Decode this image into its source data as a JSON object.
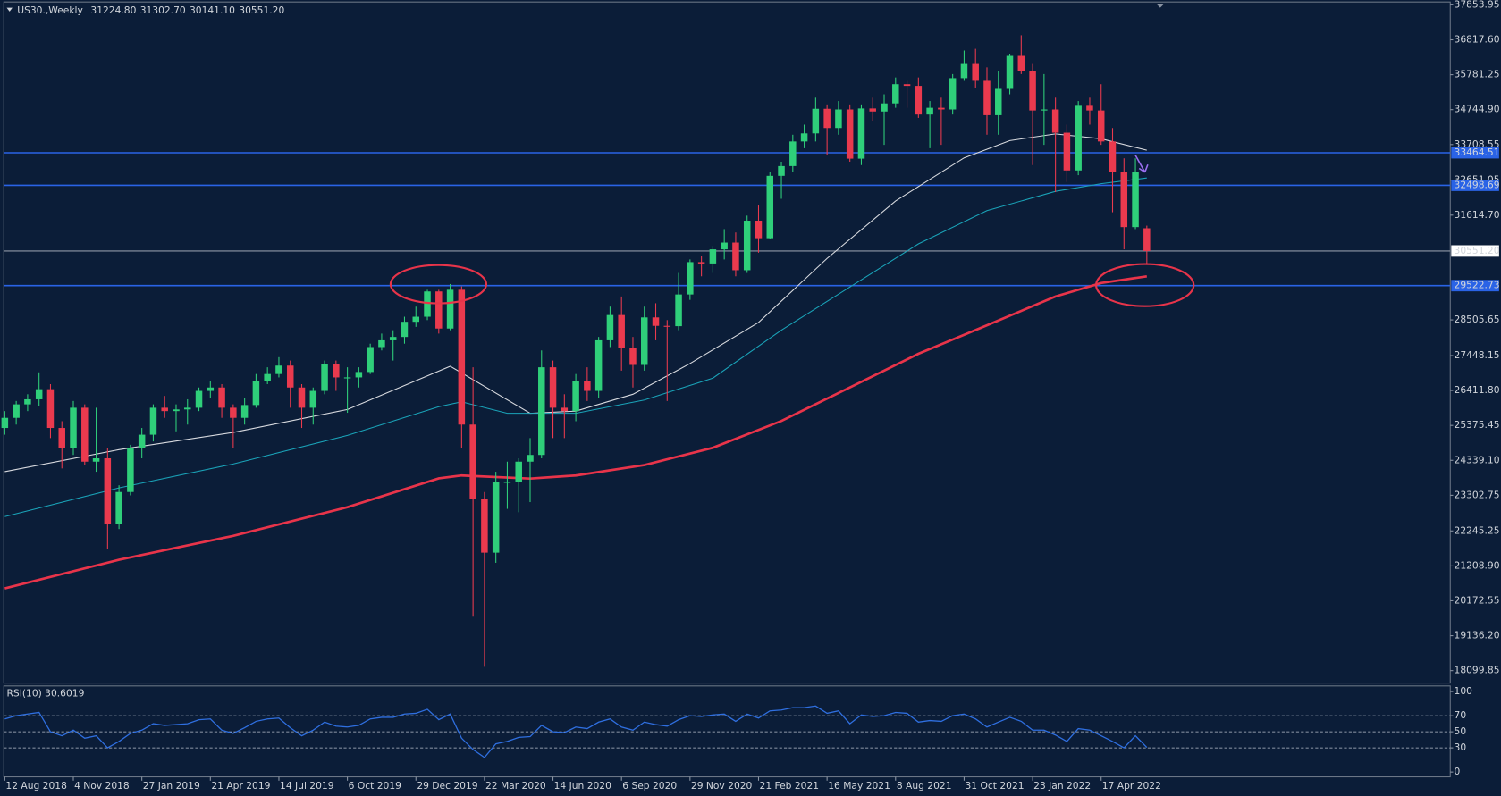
{
  "chart_data": [
    {
      "type": "candlestick",
      "title": "US30.,Weekly",
      "quote": [
        "31224.80",
        "31302.70",
        "30141.10",
        "30551.20"
      ],
      "xlim": [
        -0.42,
        126.57
      ],
      "ylim": [
        17731,
        37939
      ],
      "xticks": [
        {
          "value": 0,
          "label": "12 Aug 2018"
        },
        {
          "value": 6,
          "label": "4 Nov 2018"
        },
        {
          "value": 12,
          "label": "27 Jan 2019"
        },
        {
          "value": 18,
          "label": "21 Apr 2019"
        },
        {
          "value": 24,
          "label": "14 Jul 2019"
        },
        {
          "value": 30,
          "label": "6 Oct 2019"
        },
        {
          "value": 36,
          "label": "29 Dec 2019"
        },
        {
          "value": 42,
          "label": "22 Mar 2020"
        },
        {
          "value": 48,
          "label": "14 Jun 2020"
        },
        {
          "value": 54,
          "label": "6 Sep 2020"
        },
        {
          "value": 60,
          "label": "29 Nov 2020"
        },
        {
          "value": 66,
          "label": "21 Feb 2021"
        },
        {
          "value": 72,
          "label": "16 May 2021"
        },
        {
          "value": 78,
          "label": "8 Aug 2021"
        },
        {
          "value": 84,
          "label": "31 Oct 2021"
        },
        {
          "value": 90,
          "label": "23 Jan 2022"
        },
        {
          "value": 96,
          "label": "17 Apr 2022"
        }
      ],
      "yticks": [
        37853.95,
        {
          "value": 36817.6,
          "label": "36817.60"
        },
        35781.25,
        {
          "value": 34744.9,
          "label": "34744.90"
        },
        33708.55,
        32651.05,
        {
          "value": 31614.7,
          "label": "31614.70"
        },
        28505.65,
        27448.15,
        {
          "value": 26411.8,
          "label": "26411.80"
        },
        25375.45,
        {
          "value": 24339.1,
          "label": "24339.10"
        },
        23302.75,
        22245.25,
        {
          "value": 21208.9,
          "label": "21208.90"
        },
        20172.55,
        {
          "value": 19136.2,
          "label": "19136.20"
        },
        18099.85
      ],
      "up_color": "#2fcf7a",
      "down_color": "#ea3a4e",
      "open": [
        25300,
        25600,
        26000,
        26150,
        26450,
        25300,
        24700,
        25900,
        24300,
        24400,
        22450,
        23400,
        24700,
        25100,
        25900,
        25800,
        25850,
        25900,
        26400,
        26500,
        25900,
        25600,
        25980,
        26700,
        26900,
        27150,
        26500,
        25900,
        26400,
        27200,
        26800,
        26800,
        26960,
        27700,
        27900,
        28000,
        28450,
        28600,
        29350,
        28250,
        29400,
        25400,
        23200,
        21600,
        23700,
        23700,
        24300,
        24500,
        27100,
        25900,
        25800,
        26700,
        26400,
        27900,
        28650,
        27660,
        27170,
        28580,
        28330,
        28320,
        29260,
        30220,
        30180,
        30600,
        30800,
        29980,
        31450,
        30930,
        32780,
        33070,
        33800,
        34040,
        34770,
        34200,
        34750,
        33290,
        34780,
        34690,
        34930,
        35500,
        35450,
        34600,
        34800,
        34750,
        35680,
        36100,
        35600,
        34580,
        35360,
        36340,
        35900,
        34720,
        34750,
        34060,
        32940,
        34860,
        34720,
        33800,
        32900,
        31260,
        31224.8
      ],
      "high": [
        25800,
        26100,
        26300,
        26950,
        26600,
        25500,
        26100,
        26000,
        25900,
        24700,
        23600,
        24800,
        25300,
        26000,
        26250,
        26000,
        26150,
        26500,
        26700,
        26600,
        26000,
        26200,
        26900,
        27100,
        27400,
        27300,
        26600,
        26500,
        27300,
        27300,
        27100,
        27100,
        27800,
        28100,
        28200,
        28600,
        28900,
        29400,
        29400,
        29570,
        29500,
        27100,
        23400,
        24000,
        24300,
        24400,
        25000,
        27600,
        27300,
        26300,
        26900,
        27100,
        28000,
        28900,
        29200,
        28000,
        28900,
        29000,
        28500,
        29900,
        30300,
        30400,
        30700,
        31200,
        31100,
        31600,
        31900,
        32900,
        33200,
        34000,
        34300,
        35100,
        34900,
        35000,
        34900,
        34900,
        35100,
        35200,
        35700,
        35600,
        35700,
        35000,
        35100,
        35800,
        36500,
        36550,
        36000,
        35900,
        36400,
        36952,
        36100,
        35800,
        35100,
        34300,
        35000,
        35100,
        35500,
        34200,
        33300,
        33300,
        31302.7
      ],
      "low": [
        25100,
        25400,
        25800,
        25950,
        25000,
        24100,
        24500,
        24200,
        24000,
        21700,
        22300,
        23300,
        24400,
        24900,
        25600,
        25200,
        25400,
        25800,
        26200,
        25600,
        24700,
        25400,
        25900,
        26600,
        26800,
        25900,
        25300,
        25400,
        26300,
        26400,
        25750,
        26500,
        26900,
        27600,
        27300,
        27800,
        28300,
        28500,
        28100,
        28200,
        24700,
        19700,
        18213,
        21300,
        22900,
        22800,
        23100,
        24400,
        25000,
        25000,
        25500,
        26100,
        26200,
        27700,
        27000,
        26500,
        27000,
        27900,
        26100,
        28200,
        29100,
        29800,
        29900,
        30300,
        29800,
        29900,
        30500,
        30900,
        32100,
        32900,
        33600,
        33800,
        33400,
        34000,
        33200,
        33100,
        34400,
        33700,
        34800,
        34800,
        34500,
        33600,
        33700,
        34600,
        35600,
        35400,
        34000,
        34000,
        35200,
        35800,
        33100,
        33700,
        32300,
        32600,
        32800,
        34300,
        33700,
        31700,
        30600,
        31200,
        30141.1
      ],
      "close": [
        25600,
        26000,
        26150,
        26450,
        25300,
        24700,
        25900,
        24300,
        24400,
        22450,
        23400,
        24700,
        25100,
        25900,
        25800,
        25850,
        25900,
        26400,
        26500,
        25900,
        25600,
        25980,
        26700,
        26900,
        27150,
        26500,
        25900,
        26400,
        27200,
        26800,
        26800,
        26960,
        27700,
        27900,
        28000,
        28450,
        28600,
        29350,
        28250,
        29400,
        25400,
        23200,
        21600,
        23700,
        23700,
        24300,
        24500,
        27100,
        25900,
        25800,
        26700,
        26400,
        27900,
        28650,
        27660,
        27170,
        28580,
        28330,
        28320,
        29260,
        30220,
        30180,
        30600,
        30800,
        29980,
        31450,
        30930,
        32780,
        33070,
        33800,
        34040,
        34770,
        34200,
        34750,
        33290,
        34780,
        34690,
        34930,
        35500,
        35450,
        34600,
        34800,
        34750,
        35680,
        36100,
        35600,
        34580,
        35360,
        36340,
        35900,
        34720,
        34750,
        34060,
        32940,
        34860,
        34720,
        33800,
        32900,
        31260,
        32900,
        30551.2
      ],
      "moving_averages": [
        {
          "color": "#d8dadf",
          "x": [
            0,
            10,
            20,
            30,
            39,
            46,
            50,
            55,
            60,
            66,
            72,
            78,
            84,
            88,
            92,
            96,
            100
          ],
          "values": [
            24004,
            24657,
            25168,
            25849,
            27130,
            25735,
            25800,
            26300,
            27210,
            28431,
            30330,
            32036,
            33313,
            33826,
            34025,
            33880,
            33540
          ]
        },
        {
          "color": "#1aa3b8",
          "x": [
            0,
            10,
            20,
            30,
            38,
            40,
            44,
            50,
            56,
            62,
            68,
            74,
            80,
            86,
            92,
            96,
            100
          ],
          "values": [
            22670,
            23520,
            24230,
            25080,
            25930,
            26076,
            25735,
            25735,
            26130,
            26780,
            28200,
            29480,
            30760,
            31750,
            32320,
            32547,
            32716
          ]
        },
        {
          "color": "#e8344a",
          "x": [
            0,
            10,
            20,
            30,
            38,
            40,
            46,
            50,
            56,
            62,
            68,
            74,
            80,
            86,
            92,
            96,
            100
          ],
          "values": [
            20542,
            21390,
            22100,
            22950,
            23805,
            23890,
            23800,
            23890,
            24200,
            24713,
            25508,
            26500,
            27500,
            28346,
            29200,
            29600,
            29800
          ]
        }
      ],
      "levels": {
        "color": "#2a63e6",
        "values": [
          33464.51,
          32498.69,
          29522.73
        ]
      },
      "last_price": {
        "value": 30551.2,
        "label": "30551.20"
      }
    },
    {
      "type": "line",
      "title": "RSI(10) 30.6019",
      "color": "#2f6fe0",
      "xlim": [
        -0.42,
        126.57
      ],
      "ylim": [
        -6,
        107
      ],
      "yticks": [
        0,
        30,
        50,
        70,
        100
      ],
      "levels": [
        30,
        50,
        70
      ],
      "values": [
        66,
        70,
        72,
        74,
        50,
        45,
        52,
        42,
        45,
        30,
        38,
        48,
        52,
        60,
        58,
        59,
        60,
        65,
        66,
        52,
        48,
        55,
        63,
        66,
        67,
        55,
        45,
        52,
        62,
        57,
        56,
        58,
        66,
        68,
        68,
        72,
        73,
        78,
        65,
        72,
        42,
        28,
        18,
        35,
        38,
        43,
        44,
        58,
        50,
        49,
        56,
        54,
        62,
        66,
        56,
        52,
        62,
        59,
        57,
        65,
        70,
        69,
        71,
        72,
        63,
        72,
        67,
        76,
        77,
        80,
        80,
        82,
        73,
        76,
        60,
        71,
        69,
        70,
        74,
        73,
        62,
        64,
        63,
        70,
        72,
        66,
        56,
        62,
        68,
        63,
        52,
        52,
        46,
        38,
        54,
        52,
        45,
        38,
        30,
        45,
        30.6019
      ]
    }
  ]
}
